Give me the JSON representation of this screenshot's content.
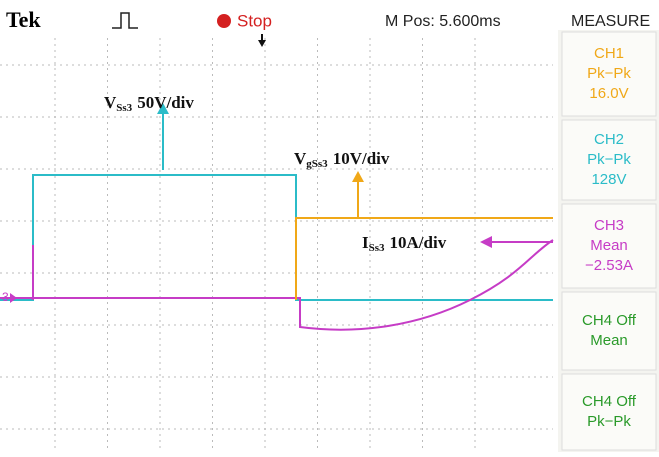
{
  "header": {
    "brand": "Tek",
    "state": "Stop",
    "position": "M Pos: 5.600ms",
    "menu": "MEASURE"
  },
  "measurements": [
    {
      "channel": "CH1",
      "type": "Pk−Pk",
      "value": "16.0V"
    },
    {
      "channel": "CH2",
      "type": "Pk−Pk",
      "value": "128V"
    },
    {
      "channel": "CH3",
      "type": "Mean",
      "value": "−2.53A"
    },
    {
      "channel": "CH4 Off",
      "type": "Mean"
    },
    {
      "channel": "CH4 Off",
      "type": "Pk−Pk"
    }
  ],
  "marker": "3",
  "annotations": [
    {
      "symbol": "V",
      "sub": "Ss3",
      "scale": "50V/div"
    },
    {
      "symbol": "V",
      "sub": "gSs3",
      "scale": "10V/div"
    },
    {
      "symbol": "I",
      "sub": "Ss3",
      "scale": "10A/div"
    }
  ]
}
